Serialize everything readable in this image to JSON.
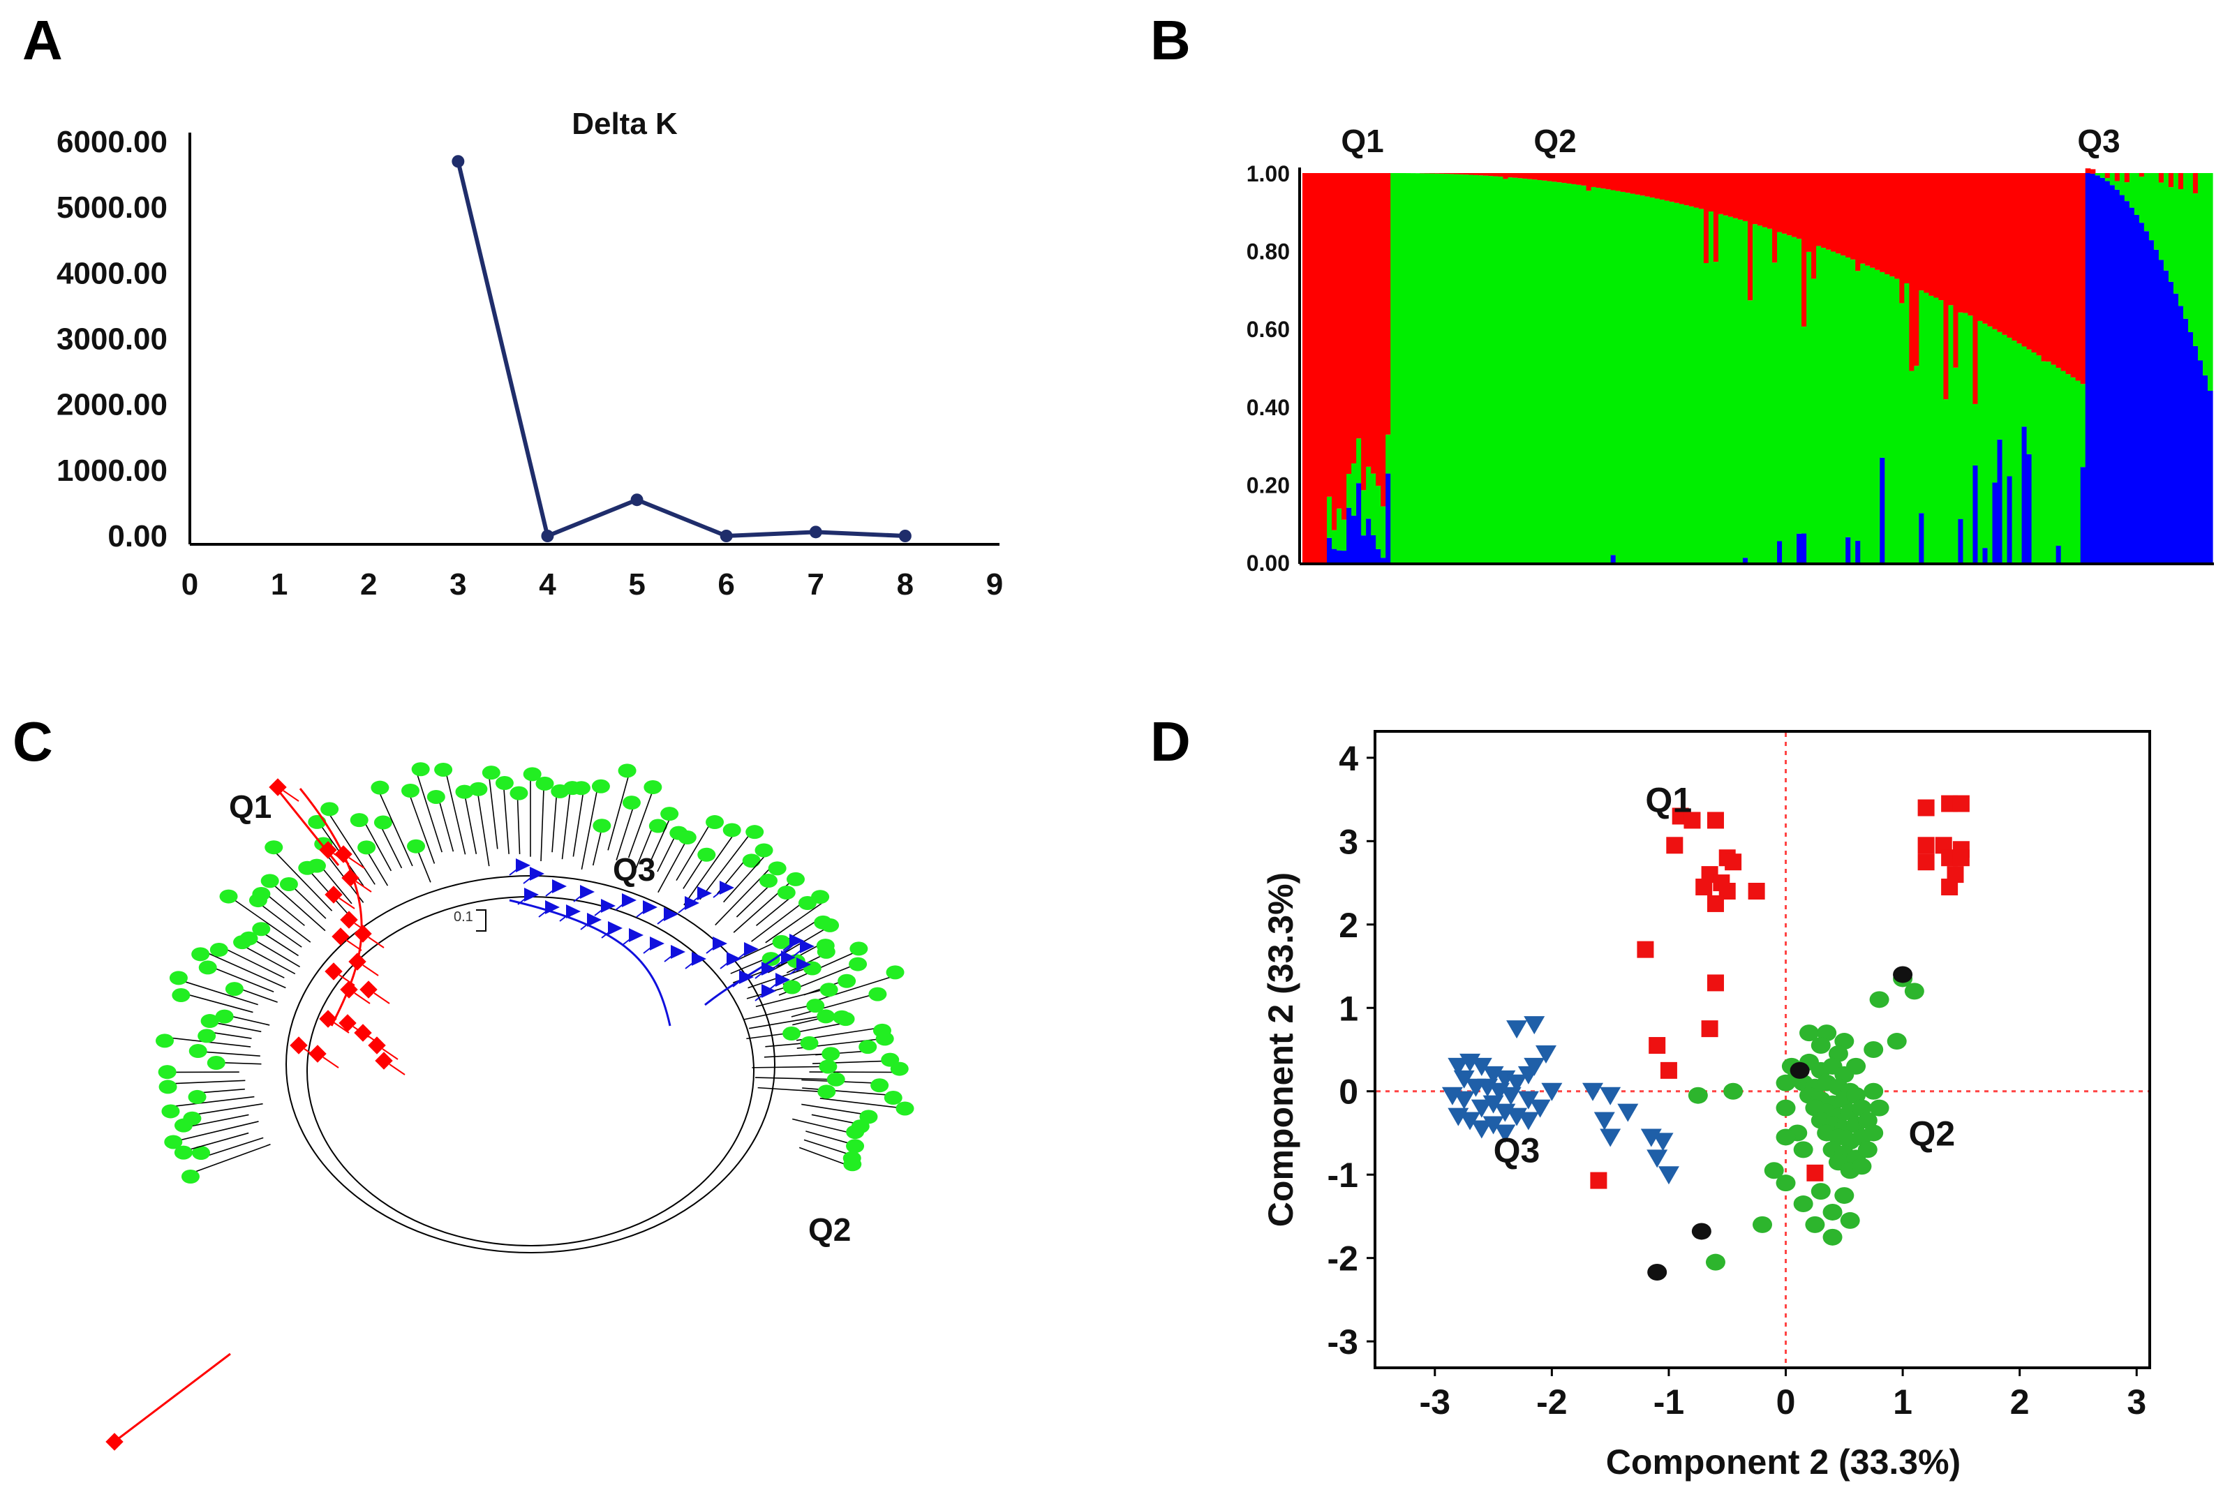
{
  "panels": {
    "a": {
      "label": "A"
    },
    "b": {
      "label": "B"
    },
    "c": {
      "label": "C"
    },
    "d": {
      "label": "D"
    }
  },
  "chart_data": [
    {
      "id": "A",
      "type": "line",
      "title": "Delta K",
      "xlabel": "",
      "ylabel": "",
      "x_ticks": [
        "0",
        "1",
        "2",
        "3",
        "4",
        "5",
        "6",
        "7",
        "8",
        "9"
      ],
      "y_ticks": [
        "0.00",
        "1000.00",
        "2000.00",
        "3000.00",
        "4000.00",
        "5000.00",
        "6000.00"
      ],
      "xlim": [
        0,
        9
      ],
      "ylim": [
        0,
        6000
      ],
      "x": [
        3,
        4,
        5,
        6,
        7,
        8
      ],
      "values": [
        5700,
        0,
        550,
        0,
        60,
        0
      ],
      "color": "#1f2d6b"
    },
    {
      "id": "B",
      "type": "bar",
      "subtype": "stacked-structure-plot",
      "ylim": [
        0,
        1
      ],
      "y_ticks": [
        "0.00",
        "0.20",
        "0.40",
        "0.60",
        "0.80",
        "1.00"
      ],
      "group_labels": [
        "Q1",
        "Q2",
        "Q3"
      ],
      "group_sizes": [
        18,
        142,
        26
      ],
      "series": [
        {
          "name": "cluster-red",
          "color": "#ff0000"
        },
        {
          "name": "cluster-green",
          "color": "#00ee00"
        },
        {
          "name": "cluster-blue",
          "color": "#0000ff"
        }
      ]
    },
    {
      "id": "C",
      "type": "tree",
      "subtype": "neighbor-joining-dendrogram",
      "scale_label": "0.1",
      "cluster_labels": [
        "Q1",
        "Q3",
        "Q2"
      ],
      "colors": {
        "Q1": "#ff0000",
        "Q2": "#22ee22",
        "Q3": "#1010dd"
      }
    },
    {
      "id": "D",
      "type": "scatter",
      "xlabel": "Component 2 (33.3%)",
      "ylabel": "Component 2 (33.3%)",
      "xlim": [
        -3.5,
        3.1
      ],
      "ylim": [
        -3.3,
        4.3
      ],
      "x_ticks": [
        "-3",
        "-2",
        "-1",
        "0",
        "1",
        "2",
        "3"
      ],
      "y_ticks": [
        "-3",
        "-2",
        "-1",
        "0",
        "1",
        "2",
        "3",
        "4"
      ],
      "x_tick_values": [
        -3,
        -2,
        -1,
        0,
        1,
        2,
        3
      ],
      "y_tick_values": [
        -3,
        -2,
        -1,
        0,
        1,
        2,
        3,
        4
      ],
      "annotations": [
        {
          "text": "Q1",
          "x": -1.2,
          "y": 3.35
        },
        {
          "text": "Q3",
          "x": -2.5,
          "y": -0.85
        },
        {
          "text": "Q2",
          "x": 1.05,
          "y": -0.65
        }
      ],
      "series": [
        {
          "name": "Q1",
          "marker": "square",
          "color": "#ee1111",
          "points": [
            [
              -0.9,
              3.3
            ],
            [
              -0.8,
              3.25
            ],
            [
              -0.6,
              3.25
            ],
            [
              -0.95,
              2.95
            ],
            [
              -0.5,
              2.8
            ],
            [
              -0.45,
              2.75
            ],
            [
              -0.65,
              2.6
            ],
            [
              -0.55,
              2.5
            ],
            [
              -0.7,
              2.45
            ],
            [
              -0.5,
              2.4
            ],
            [
              -0.25,
              2.4
            ],
            [
              -0.6,
              2.25
            ],
            [
              -1.2,
              1.7
            ],
            [
              -0.6,
              1.3
            ],
            [
              1.4,
              3.45
            ],
            [
              1.5,
              3.45
            ],
            [
              1.2,
              3.4
            ],
            [
              1.2,
              2.95
            ],
            [
              1.35,
              2.95
            ],
            [
              1.5,
              2.9
            ],
            [
              1.2,
              2.75
            ],
            [
              1.4,
              2.8
            ],
            [
              1.5,
              2.8
            ],
            [
              1.45,
              2.6
            ],
            [
              1.4,
              2.45
            ],
            [
              -1.1,
              0.55
            ],
            [
              -0.65,
              0.75
            ],
            [
              -1.0,
              0.25
            ],
            [
              -1.6,
              -1.07
            ],
            [
              0.25,
              -0.98
            ]
          ]
        },
        {
          "name": "Q3",
          "marker": "triangle-down",
          "color": "#1f5fa8",
          "points": [
            [
              -2.8,
              0.3
            ],
            [
              -2.7,
              0.35
            ],
            [
              -2.6,
              0.3
            ],
            [
              -2.5,
              0.2
            ],
            [
              -2.4,
              0.15
            ],
            [
              -2.3,
              0.1
            ],
            [
              -2.2,
              0.2
            ],
            [
              -2.75,
              0.15
            ],
            [
              -2.65,
              0.05
            ],
            [
              -2.55,
              0.05
            ],
            [
              -2.45,
              0.0
            ],
            [
              -2.35,
              -0.05
            ],
            [
              -2.85,
              -0.05
            ],
            [
              -2.75,
              -0.1
            ],
            [
              -2.6,
              -0.2
            ],
            [
              -2.5,
              -0.15
            ],
            [
              -2.4,
              -0.25
            ],
            [
              -2.3,
              -0.3
            ],
            [
              -2.2,
              -0.1
            ],
            [
              -2.8,
              -0.3
            ],
            [
              -2.7,
              -0.35
            ],
            [
              -2.6,
              -0.45
            ],
            [
              -2.5,
              -0.4
            ],
            [
              -2.4,
              -0.5
            ],
            [
              -2.2,
              -0.35
            ],
            [
              -2.1,
              -0.2
            ],
            [
              -2.15,
              0.3
            ],
            [
              -2.05,
              0.45
            ],
            [
              -2.3,
              0.75
            ],
            [
              -2.15,
              0.8
            ],
            [
              -2.0,
              0.0
            ],
            [
              -1.65,
              0.0
            ],
            [
              -1.5,
              -0.05
            ],
            [
              -1.55,
              -0.35
            ],
            [
              -1.35,
              -0.25
            ],
            [
              -1.5,
              -0.55
            ],
            [
              -1.15,
              -0.55
            ],
            [
              -1.05,
              -0.6
            ],
            [
              -1.1,
              -0.8
            ],
            [
              -1.0,
              -1.0
            ]
          ]
        },
        {
          "name": "Q2",
          "marker": "circle",
          "color": "#2db52d",
          "points": [
            [
              0.2,
              0.7
            ],
            [
              0.35,
              0.7
            ],
            [
              0.5,
              0.6
            ],
            [
              0.3,
              0.55
            ],
            [
              0.45,
              0.45
            ],
            [
              0.2,
              0.35
            ],
            [
              0.6,
              0.3
            ],
            [
              0.1,
              0.2
            ],
            [
              0.3,
              0.25
            ],
            [
              0.4,
              0.3
            ],
            [
              0.5,
              0.2
            ],
            [
              0.15,
              0.1
            ],
            [
              0.25,
              0.05
            ],
            [
              0.35,
              0.1
            ],
            [
              0.45,
              0.05
            ],
            [
              0.55,
              0.0
            ],
            [
              0.2,
              -0.05
            ],
            [
              0.3,
              -0.1
            ],
            [
              0.4,
              -0.15
            ],
            [
              0.5,
              -0.1
            ],
            [
              0.6,
              -0.05
            ],
            [
              0.25,
              -0.2
            ],
            [
              0.35,
              -0.25
            ],
            [
              0.45,
              -0.3
            ],
            [
              0.55,
              -0.25
            ],
            [
              0.65,
              -0.2
            ],
            [
              0.3,
              -0.35
            ],
            [
              0.4,
              -0.4
            ],
            [
              0.5,
              -0.45
            ],
            [
              0.6,
              -0.4
            ],
            [
              0.7,
              -0.35
            ],
            [
              0.35,
              -0.5
            ],
            [
              0.45,
              -0.55
            ],
            [
              0.55,
              -0.6
            ],
            [
              0.65,
              -0.55
            ],
            [
              0.4,
              -0.7
            ],
            [
              0.5,
              -0.75
            ],
            [
              0.6,
              -0.8
            ],
            [
              0.7,
              -0.7
            ],
            [
              0.45,
              -0.85
            ],
            [
              0.55,
              -0.95
            ],
            [
              0.65,
              -0.9
            ],
            [
              0.75,
              0.0
            ],
            [
              0.8,
              -0.2
            ],
            [
              0.75,
              -0.5
            ],
            [
              0.1,
              -0.5
            ],
            [
              0.0,
              -0.55
            ],
            [
              0.15,
              -0.7
            ],
            [
              -0.1,
              -0.95
            ],
            [
              0.0,
              -1.1
            ],
            [
              0.3,
              -1.2
            ],
            [
              0.5,
              -1.25
            ],
            [
              0.15,
              -1.35
            ],
            [
              0.4,
              -1.45
            ],
            [
              0.55,
              -1.55
            ],
            [
              -0.2,
              -1.6
            ],
            [
              0.25,
              -1.6
            ],
            [
              0.4,
              -1.75
            ],
            [
              -0.6,
              -2.05
            ],
            [
              0.0,
              -0.2
            ],
            [
              -0.45,
              0.0
            ],
            [
              -0.75,
              -0.05
            ],
            [
              0.8,
              1.1
            ],
            [
              1.0,
              1.35
            ],
            [
              1.1,
              1.2
            ],
            [
              0.95,
              0.6
            ],
            [
              0.75,
              0.5
            ],
            [
              0.0,
              0.1
            ],
            [
              0.05,
              0.3
            ]
          ]
        },
        {
          "name": "admixed",
          "marker": "circle",
          "color": "#111111",
          "points": [
            [
              1.0,
              1.4
            ],
            [
              0.12,
              0.25
            ],
            [
              -0.72,
              -1.68
            ],
            [
              -1.1,
              -2.17
            ]
          ]
        }
      ]
    }
  ]
}
